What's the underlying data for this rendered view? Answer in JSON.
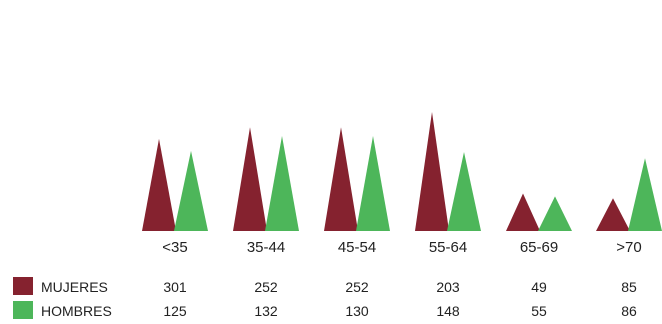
{
  "chart_data": {
    "type": "bar",
    "categories": [
      "<35",
      "35-44",
      "45-54",
      "55-64",
      "65-69",
      ">70"
    ],
    "series": [
      {
        "name": "MUJERES",
        "color": "#85222f",
        "values": [
          301,
          252,
          252,
          203,
          49,
          85
        ]
      },
      {
        "name": "HOMBRES",
        "color": "#4db65a",
        "values": [
          125,
          132,
          130,
          148,
          55,
          86
        ]
      }
    ],
    "bar_shape": "triangle",
    "grid": false,
    "legend": "bottom-left",
    "table_below": true
  }
}
